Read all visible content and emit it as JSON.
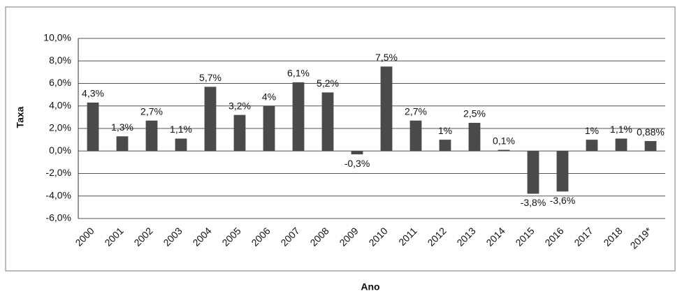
{
  "chart_data": {
    "type": "bar",
    "x_label": "Ano",
    "y_label": "Taxa",
    "categories": [
      "2000",
      "2001",
      "2002",
      "2003",
      "2004",
      "2005",
      "2006",
      "2007",
      "2008",
      "2009",
      "2010",
      "2011",
      "2012",
      "2013",
      "2014",
      "2015",
      "2016",
      "2017",
      "2018",
      "2019*"
    ],
    "values": [
      4.3,
      1.3,
      2.7,
      1.1,
      5.7,
      3.2,
      4,
      6.1,
      5.2,
      -0.3,
      7.5,
      2.7,
      1,
      2.5,
      0.1,
      -3.8,
      -3.6,
      1,
      1.1,
      0.88
    ],
    "value_labels": [
      "4,3%",
      "1,3%",
      "2,7%",
      "1,1%",
      "5,7%",
      "3,2%",
      "4%",
      "6,1%",
      "5,2%",
      "-0,3%",
      "7,5%",
      "2,7%",
      "1%",
      "2,5%",
      "0,1%",
      "-3,8%",
      "-3,6%",
      "1%",
      "1,1%",
      "0,88%"
    ],
    "color": "#4a4a4a",
    "ylim": [
      -6,
      10
    ],
    "yticks": [
      {
        "value": -6,
        "label": "-6,0%"
      },
      {
        "value": -4,
        "label": "-4,0%"
      },
      {
        "value": -2,
        "label": "-2,0%"
      },
      {
        "value": 0,
        "label": "0,0%"
      },
      {
        "value": 2,
        "label": "2,0%"
      },
      {
        "value": 4,
        "label": "4,0%"
      },
      {
        "value": 6,
        "label": "6,0%"
      },
      {
        "value": 8,
        "label": "8,0%"
      },
      {
        "value": 10,
        "label": "10,0%"
      }
    ],
    "grid": true
  }
}
